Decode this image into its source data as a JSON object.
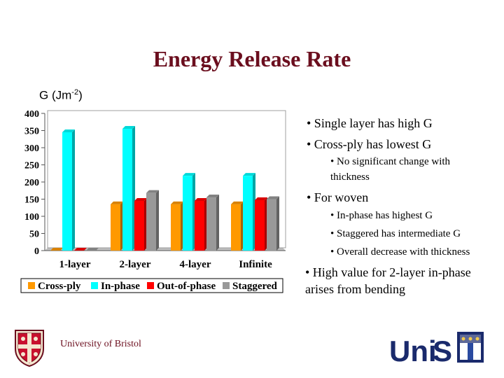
{
  "slide": {
    "title": "Energy Release Rate",
    "ylabel_main": "G (Jm",
    "ylabel_sup": "-2",
    "ylabel_close": ")"
  },
  "chart_data": {
    "type": "bar",
    "categories": [
      "1-layer",
      "2-layer",
      "4-layer",
      "Infinite"
    ],
    "series": [
      {
        "name": "Cross-ply",
        "color": "#ff9900",
        "values": [
          0,
          135,
          135,
          135
        ]
      },
      {
        "name": "In-phase",
        "color": "#00ffff",
        "values": [
          345,
          355,
          218,
          218
        ]
      },
      {
        "name": "Out-of-phase",
        "color": "#ff0000",
        "values": [
          0,
          145,
          145,
          147
        ]
      },
      {
        "name": "Staggered",
        "color": "#999999",
        "values": [
          0,
          168,
          155,
          150
        ]
      }
    ],
    "yticks": [
      "0",
      "50",
      "100",
      "150",
      "200",
      "250",
      "300",
      "350",
      "400"
    ],
    "ylim": [
      0,
      400
    ],
    "legend_position": "bottom"
  },
  "bullets": [
    {
      "level": 1,
      "text": "• Single layer has high G"
    },
    {
      "level": 1,
      "text": "• Cross-ply has lowest G"
    },
    {
      "level": 2,
      "text": "• No significant change with"
    },
    {
      "level": 2,
      "text": "thickness"
    },
    {
      "level": 1,
      "text": "• For woven"
    },
    {
      "level": 3,
      "text": "• In-phase has highest G"
    },
    {
      "level": 3,
      "text": "• Staggered has intermediate G"
    },
    {
      "level": 3,
      "text": "• Overall decrease with thickness"
    },
    {
      "level": 1,
      "text": "• High value for 2-layer in-phase"
    },
    {
      "level": 1,
      "text": "arises from bending"
    }
  ],
  "footer": {
    "university": "University of Bristol",
    "logo_text_uni": "Uni",
    "logo_text_s": "S"
  }
}
